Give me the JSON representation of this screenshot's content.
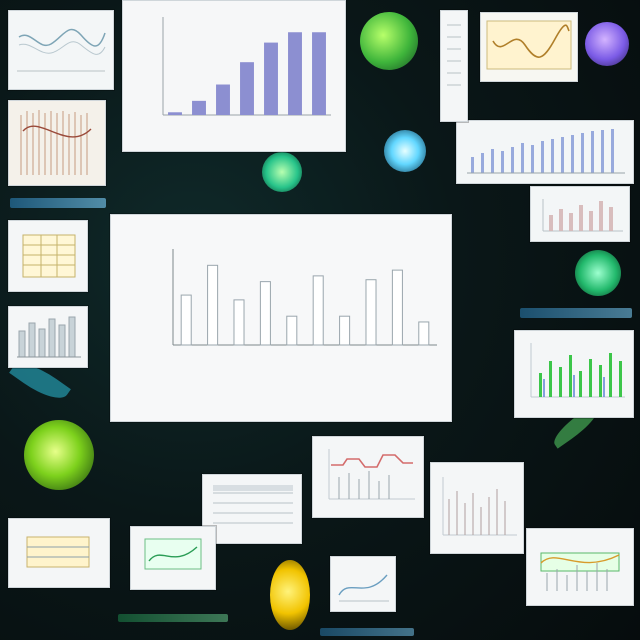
{
  "chart_data": [
    {
      "type": "bar",
      "categories": [
        "",
        "",
        "",
        "",
        "",
        "",
        ""
      ],
      "values": [
        0.05,
        0.26,
        0.56,
        0.97,
        1.33,
        1.52,
        1.52
      ],
      "title": "",
      "xlabel": "",
      "ylabel": "",
      "ylim": [
        0,
        1.8
      ],
      "colors": {
        "bar": "#8c8fd1",
        "panel": "#f5f6f7",
        "axis": "#9aa3a9"
      },
      "grid": false
    },
    {
      "type": "bar",
      "categories": [
        "",
        "",
        "",
        "",
        "",
        "",
        "",
        "",
        "",
        ""
      ],
      "values": [
        0.52,
        0.83,
        0.47,
        0.66,
        0.3,
        0.72,
        0.3,
        0.68,
        0.78,
        0.24
      ],
      "title": "",
      "xlabel": "",
      "ylabel": "",
      "ylim": [
        0,
        1.0
      ],
      "colors": {
        "bar": "#ffffff",
        "edge": "#9aa6ad",
        "panel": "#f7f8f9",
        "axis": "#7e878c"
      },
      "grid": false
    }
  ],
  "icons": [
    "leaf-icon",
    "flower-icon",
    "beetle-icon",
    "plant-icon",
    "gear-icon"
  ]
}
